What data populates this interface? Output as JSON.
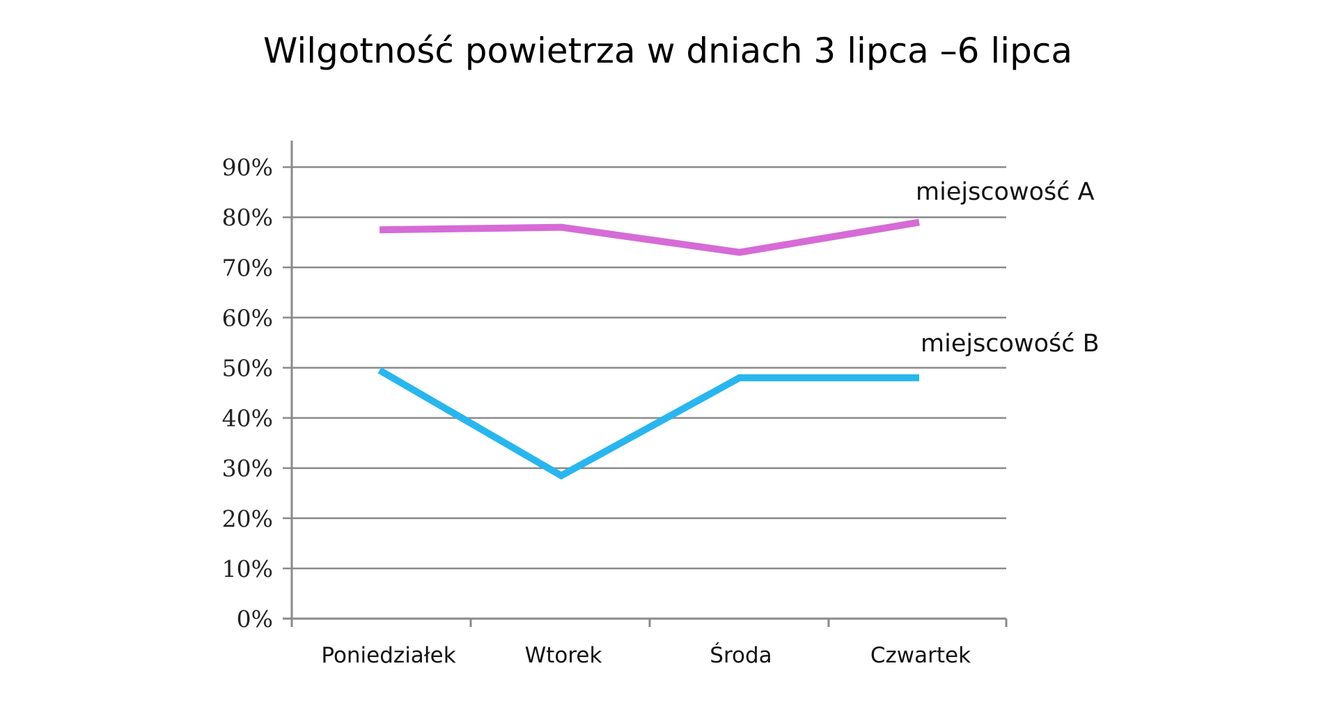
{
  "chart_data": {
    "type": "line",
    "title": "Wilgotność powietrza w dniach 3 lipca –6 lipca",
    "xlabel": "",
    "ylabel": "",
    "categories": [
      "Poniedziałek",
      "Wtorek",
      "Środa",
      "Czwartek"
    ],
    "yticks": [
      "0%",
      "10%",
      "20%",
      "30%",
      "40%",
      "50%",
      "60%",
      "70%",
      "80%",
      "90%"
    ],
    "ylim": [
      0,
      90
    ],
    "grid": true,
    "legend_position": "inline-right",
    "series": [
      {
        "name": "miejscowość A",
        "color": "#D66BD6",
        "values": [
          77.5,
          78,
          73,
          79
        ]
      },
      {
        "name": "miejscowość B",
        "color": "#29B6EE",
        "values": [
          49.5,
          28.5,
          48,
          48
        ]
      }
    ]
  },
  "colors": {
    "grid": "#8a8a8a",
    "background": "#ffffff"
  }
}
